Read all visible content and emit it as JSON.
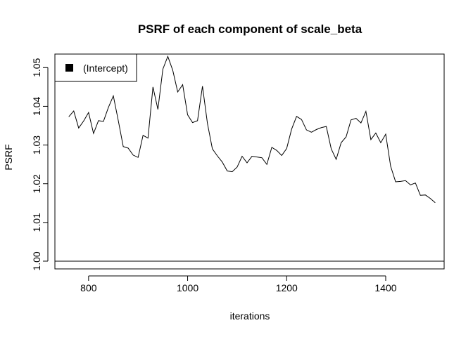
{
  "chart_data": {
    "type": "line",
    "title": "PSRF of each component of scale_beta",
    "xlabel": "iterations",
    "ylabel": "PSRF",
    "xlim": [
      732,
      1518
    ],
    "ylim": [
      0.998,
      1.0535
    ],
    "x_ticks": [
      800,
      1000,
      1200,
      1400
    ],
    "y_ticks": [
      1.0,
      1.01,
      1.02,
      1.03,
      1.04,
      1.05
    ],
    "y_tick_labels": [
      "1.00",
      "1.01",
      "1.02",
      "1.03",
      "1.04",
      "1.05"
    ],
    "hline": 1.0,
    "grid": false,
    "legend_position": "top-left",
    "legend_symbol_color": "#000000",
    "line_color": "#000000",
    "series": [
      {
        "name": "(Intercept)",
        "x": [
          760,
          770,
          780,
          790,
          800,
          810,
          820,
          830,
          840,
          850,
          860,
          870,
          880,
          890,
          900,
          910,
          920,
          930,
          940,
          950,
          960,
          970,
          980,
          990,
          1000,
          1010,
          1020,
          1030,
          1040,
          1050,
          1060,
          1070,
          1080,
          1090,
          1100,
          1110,
          1120,
          1130,
          1140,
          1150,
          1160,
          1170,
          1180,
          1190,
          1200,
          1210,
          1220,
          1230,
          1240,
          1250,
          1260,
          1270,
          1280,
          1290,
          1300,
          1310,
          1320,
          1330,
          1340,
          1350,
          1360,
          1370,
          1380,
          1390,
          1400,
          1410,
          1420,
          1430,
          1440,
          1450,
          1460,
          1470,
          1480,
          1490,
          1500
        ],
        "y": [
          1.0373,
          1.0388,
          1.0344,
          1.0362,
          1.0384,
          1.033,
          1.0363,
          1.0361,
          1.0397,
          1.0427,
          1.0363,
          1.0296,
          1.0292,
          1.0274,
          1.0268,
          1.0325,
          1.0318,
          1.045,
          1.0392,
          1.0496,
          1.0529,
          1.0493,
          1.0437,
          1.0456,
          1.0378,
          1.0358,
          1.0363,
          1.0452,
          1.0356,
          1.029,
          1.0272,
          1.0256,
          1.0233,
          1.0231,
          1.0243,
          1.0271,
          1.0254,
          1.0271,
          1.0269,
          1.0267,
          1.025,
          1.0294,
          1.0286,
          1.0273,
          1.0291,
          1.0341,
          1.0374,
          1.0366,
          1.0339,
          1.0333,
          1.034,
          1.0345,
          1.0348,
          1.029,
          1.0263,
          1.0306,
          1.0321,
          1.0365,
          1.0369,
          1.0357,
          1.0387,
          1.0314,
          1.0331,
          1.0306,
          1.0328,
          1.0245,
          1.0205,
          1.0206,
          1.0208,
          1.0197,
          1.0202,
          1.017,
          1.0171,
          1.0162,
          1.0151
        ]
      }
    ]
  }
}
